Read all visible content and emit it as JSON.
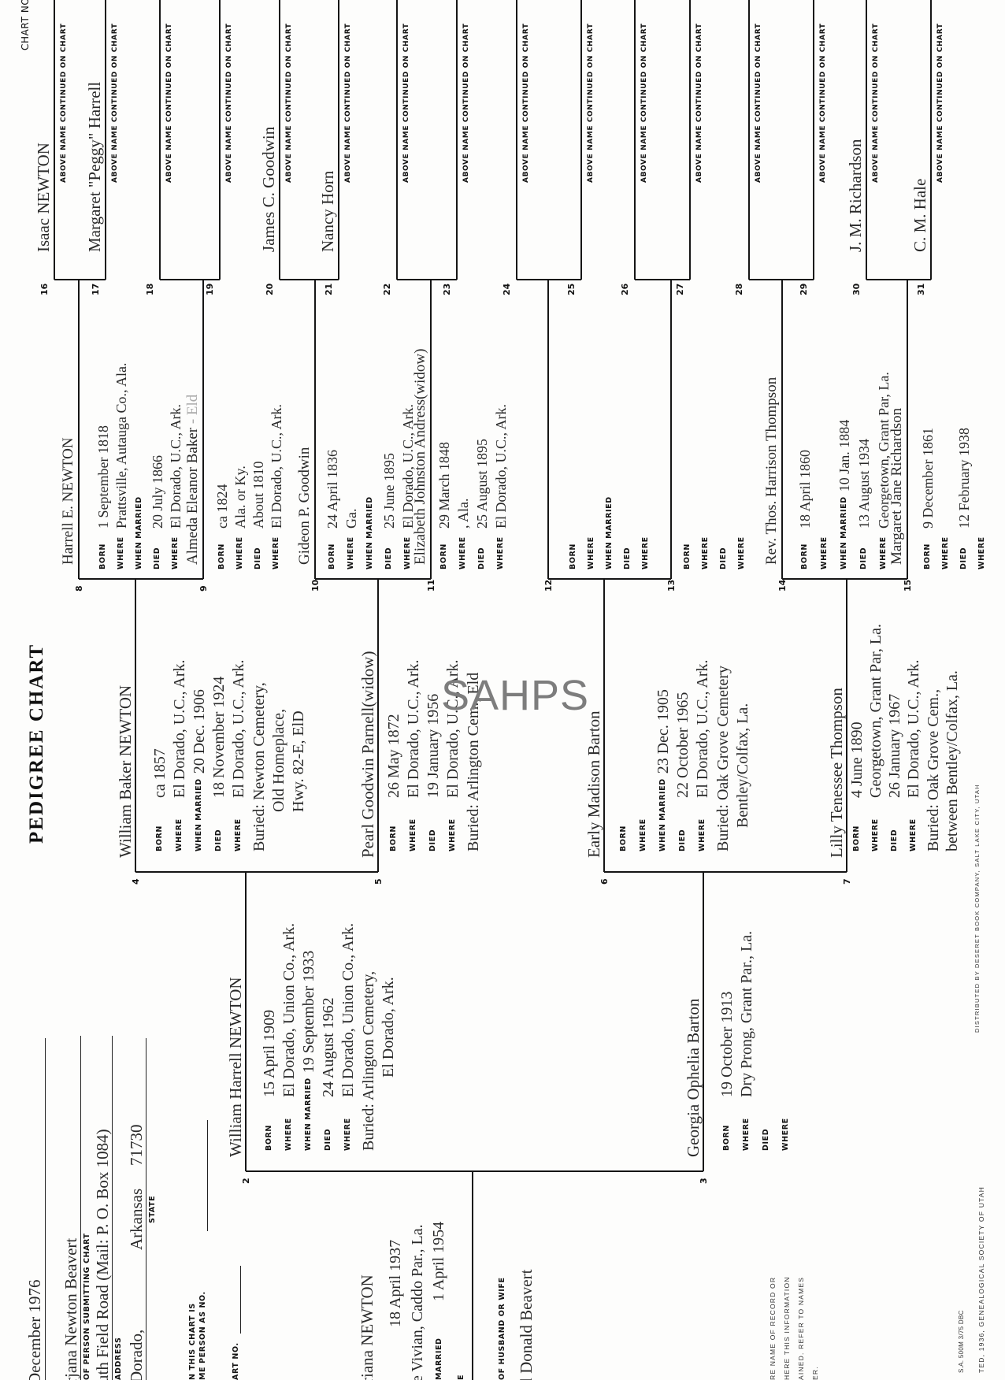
{
  "header": {
    "title": "PEDIGREE CHART",
    "chart_no_label": "CHART NO."
  },
  "submitter": {
    "date": "December 1976",
    "name": "rjana Newton Beavert",
    "name_label": "OF PERSON SUBMITTING CHART",
    "address": "uth Field Road (Mail: P. O. Box 1084)",
    "address_label": "ADDRESS",
    "city": "Dorado,",
    "state": "Arkansas",
    "zip": "71730",
    "state_label": "STATE",
    "same_person_line1": "N THIS CHART IS",
    "same_person_line2": "ME PERSON AS NO.",
    "chart_no_label": "ART NO."
  },
  "person1": {
    "name": "riana NEWTON",
    "born": "18 April 1937",
    "where": "e Vivian, Caddo Par., La.",
    "married_label": "MARRIED",
    "married": "1 April 1954",
    "where_label_fragment": "E",
    "spouse_label": "OF HUSBAND OR WIFE",
    "spouse": "l Donald Beavert"
  },
  "persons": [
    {
      "number": "2",
      "name": "William Harrell NEWTON",
      "rows": [
        {
          "label": "BORN",
          "value": "15 April 1909"
        },
        {
          "label": "WHERE",
          "value": "El Dorado, Union Co., Ark."
        },
        {
          "label": "WHEN MARRIED",
          "value": "19 September 1933"
        },
        {
          "label": "DIED",
          "value": "24 August 1962"
        },
        {
          "label": "WHERE",
          "value": "El Dorado, Union Co., Ark."
        }
      ],
      "burial": [
        "Buried: Arlington Cemetery,",
        "El Dorado, Ark."
      ]
    },
    {
      "number": "3",
      "name": "Georgia Ophelia Barton",
      "rows": [
        {
          "label": "BORN",
          "value": "19 October 1913"
        },
        {
          "label": "WHERE",
          "value": "Dry Prong, Grant Par., La."
        },
        {
          "label": "DIED",
          "value": ""
        },
        {
          "label": "WHERE",
          "value": ""
        }
      ],
      "burial": []
    },
    {
      "number": "4",
      "name": "William Baker NEWTON",
      "rows": [
        {
          "label": "BORN",
          "value": "ca 1857"
        },
        {
          "label": "WHERE",
          "value": "El Dorado, U.C., Ark."
        },
        {
          "label": "WHEN MARRIED",
          "value": "20 Dec. 1906"
        },
        {
          "label": "DIED",
          "value": "18 November 1924"
        },
        {
          "label": "WHERE",
          "value": "El Dorado, U.C., Ark."
        }
      ],
      "burial": [
        "Buried: Newton Cemetery,",
        "Old Homeplace,",
        "Hwy. 82-E, ElD"
      ]
    },
    {
      "number": "5",
      "name": "Pearl Goodwin Parnell(widow)",
      "rows": [
        {
          "label": "BORN",
          "value": "26 May 1872"
        },
        {
          "label": "WHERE",
          "value": "El Dorado, U.C., Ark."
        },
        {
          "label": "DIED",
          "value": "19 January 1956"
        },
        {
          "label": "WHERE",
          "value": "El Dorado, U.C., Ark."
        }
      ],
      "burial": [
        "Buried: Arlington Cem., Eld"
      ]
    },
    {
      "number": "6",
      "name": "Early Madison Barton",
      "rows": [
        {
          "label": "BORN",
          "value": ""
        },
        {
          "label": "WHERE",
          "value": ""
        },
        {
          "label": "WHEN MARRIED",
          "value": "23 Dec. 1905"
        },
        {
          "label": "DIED",
          "value": "22 October 1965"
        },
        {
          "label": "WHERE",
          "value": "El Dorado, U.C., Ark."
        }
      ],
      "burial": [
        "Buried: Oak Grove Cemetery",
        "Bentley/Colfax, La."
      ]
    },
    {
      "number": "7",
      "name": "Lilly Tenessee Thompson",
      "rows": [
        {
          "label": "BORN",
          "value": "4 June 1890"
        },
        {
          "label": "WHERE",
          "value": "Georgetown, Grant Par, La."
        },
        {
          "label": "DIED",
          "value": "26 January 1967"
        },
        {
          "label": "WHERE",
          "value": "El Dorado, U.C., Ark."
        }
      ],
      "burial": [
        "Buried: Oak Grove Cem.,",
        "between Bentley/Colfax, La."
      ]
    },
    {
      "number": "8",
      "name": "Harrell E. NEWTON",
      "rows": [
        {
          "label": "BORN",
          "value": "1 September 1818"
        },
        {
          "label": "WHERE",
          "value": "Prattsville, Autauga Co., Ala."
        },
        {
          "label": "WHEN MARRIED",
          "value": ""
        },
        {
          "label": "DIED",
          "value": "20 July 1866"
        },
        {
          "label": "WHERE",
          "value": "El Dorado, U.C., Ark."
        }
      ],
      "burial": []
    },
    {
      "number": "9",
      "name": "Almeda Eleanor Baker",
      "name_note": "- Eld",
      "rows": [
        {
          "label": "BORN",
          "value": "ca 1824"
        },
        {
          "label": "WHERE",
          "value": "Ala. or Ky."
        },
        {
          "label": "DIED",
          "value": "About 1810"
        },
        {
          "label": "WHERE",
          "value": "El Dorado, U.C., Ark."
        }
      ],
      "burial": []
    },
    {
      "number": "10",
      "name": "Gideon P. Goodwin",
      "rows": [
        {
          "label": "BORN",
          "value": "24 April 1836"
        },
        {
          "label": "WHERE",
          "value": "Ga."
        },
        {
          "label": "WHEN MARRIED",
          "value": ""
        },
        {
          "label": "DIED",
          "value": "25 June 1895"
        },
        {
          "label": "WHERE",
          "value": "El Dorado, U.C., Ark."
        }
      ],
      "burial": []
    },
    {
      "number": "11",
      "name": "Elizabeth Johnston Andress(widow)",
      "rows": [
        {
          "label": "BORN",
          "value": "29 March 1848"
        },
        {
          "label": "WHERE",
          "value": ", Ala."
        },
        {
          "label": "DIED",
          "value": "25 August 1895"
        },
        {
          "label": "WHERE",
          "value": "El Dorado, U.C., Ark."
        }
      ],
      "burial": []
    },
    {
      "number": "12",
      "name": "",
      "rows": [
        {
          "label": "BORN",
          "value": ""
        },
        {
          "label": "WHERE",
          "value": ""
        },
        {
          "label": "WHEN MARRIED",
          "value": ""
        },
        {
          "label": "DIED",
          "value": ""
        },
        {
          "label": "WHERE",
          "value": ""
        }
      ],
      "burial": []
    },
    {
      "number": "13",
      "name": "",
      "rows": [
        {
          "label": "BORN",
          "value": ""
        },
        {
          "label": "WHERE",
          "value": ""
        },
        {
          "label": "DIED",
          "value": ""
        },
        {
          "label": "WHERE",
          "value": ""
        }
      ],
      "burial": []
    },
    {
      "number": "14",
      "name": "Rev. Thos. Harrison Thompson",
      "rows": [
        {
          "label": "BORN",
          "value": "18 April 1860"
        },
        {
          "label": "WHERE",
          "value": ""
        },
        {
          "label": "WHEN MARRIED",
          "value": "10 Jan. 1884"
        },
        {
          "label": "DIED",
          "value": "13 August 1934"
        },
        {
          "label": "WHERE",
          "value": "Georgetown, Grant Par, La."
        }
      ],
      "burial": []
    },
    {
      "number": "15",
      "name": "Margaret Jane Richardson",
      "rows": [
        {
          "label": "BORN",
          "value": "9 December 1861"
        },
        {
          "label": "WHERE",
          "value": ""
        },
        {
          "label": "DIED",
          "value": "12 February 1938"
        },
        {
          "label": "WHERE",
          "value": ""
        }
      ],
      "burial": []
    }
  ],
  "gen5_caption": "ABOVE NAME CONTINUED ON CHART",
  "gen5": [
    {
      "number": "16",
      "name": "Isaac NEWTON"
    },
    {
      "number": "17",
      "name": "Margaret \"Peggy\" Harrell"
    },
    {
      "number": "18",
      "name": ""
    },
    {
      "number": "19",
      "name": ""
    },
    {
      "number": "20",
      "name": "James C. Goodwin"
    },
    {
      "number": "21",
      "name": "Nancy Horn"
    },
    {
      "number": "22",
      "name": ""
    },
    {
      "number": "23",
      "name": ""
    },
    {
      "number": "24",
      "name": ""
    },
    {
      "number": "25",
      "name": ""
    },
    {
      "number": "26",
      "name": ""
    },
    {
      "number": "27",
      "name": ""
    },
    {
      "number": "28",
      "name": ""
    },
    {
      "number": "29",
      "name": ""
    },
    {
      "number": "30",
      "name": "J. M. Richardson"
    },
    {
      "number": "31",
      "name": "C. M. Hale"
    }
  ],
  "footer": {
    "notes": [
      "RE NAME OF RECORD OR",
      "HERE THIS INFORMATION",
      "AINED. REFER TO NAMES",
      "ER."
    ],
    "print_code": "S.A. 500M 3/75 DBC",
    "copyright": "TED, 1936, GENEALOGICAL SOCIETY OF UTAH",
    "distributor": "DISTRIBUTED BY DESERET BOOK COMPANY, SALT LAKE CITY, UTAH"
  },
  "watermark": "SAHPS"
}
